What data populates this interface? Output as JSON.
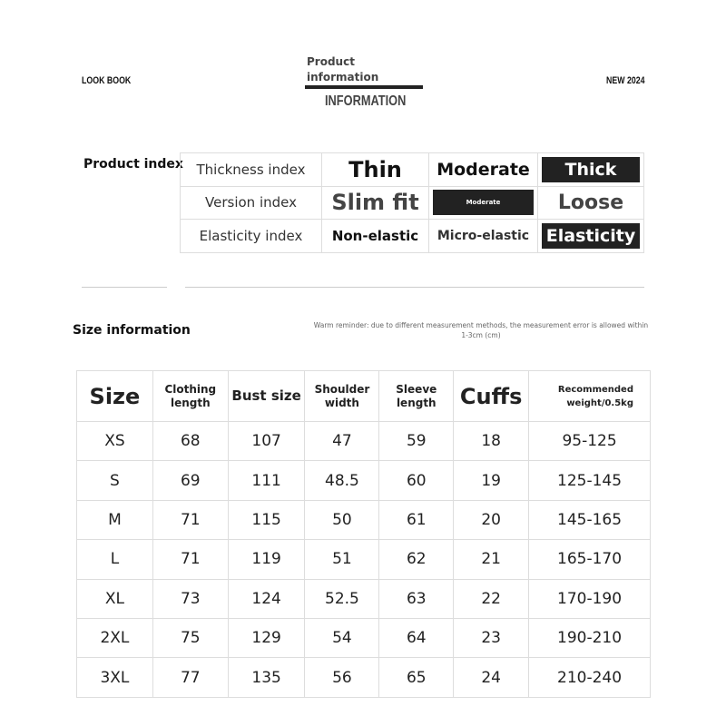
{
  "header": {
    "left": "LOOK BOOK",
    "right": "NEW 2024",
    "title_line1": "Product",
    "title_line2": "information",
    "subtitle": "INFORMATION"
  },
  "product_index": {
    "label": "Product index",
    "rows": [
      {
        "label": "Thickness index",
        "options": [
          "Thin",
          "Moderate",
          "Thick"
        ],
        "selected": 2
      },
      {
        "label": "Version index",
        "options": [
          "Slim fit",
          "Moderate",
          "Loose"
        ],
        "selected": 1
      },
      {
        "label": "Elasticity index",
        "options": [
          "Non-elastic",
          "Micro-elastic",
          "Elasticity"
        ],
        "selected": 2
      }
    ]
  },
  "size_info": {
    "label": "Size information",
    "reminder_line1": "Warm reminder: due to different measurement methods, the measurement error is allowed within",
    "reminder_line2": "1-3cm (cm)",
    "columns": [
      "Size",
      "Clothing length",
      "Bust size",
      "Shoulder width",
      "Sleeve length",
      "Cuffs",
      "Recommended weight/0.5kg"
    ],
    "rows": [
      [
        "XS",
        "68",
        "107",
        "47",
        "59",
        "18",
        "95-125"
      ],
      [
        "S",
        "69",
        "111",
        "48.5",
        "60",
        "19",
        "125-145"
      ],
      [
        "M",
        "71",
        "115",
        "50",
        "61",
        "20",
        "145-165"
      ],
      [
        "L",
        "71",
        "119",
        "51",
        "62",
        "21",
        "165-170"
      ],
      [
        "XL",
        "73",
        "124",
        "52.5",
        "63",
        "22",
        "170-190"
      ],
      [
        "2XL",
        "75",
        "129",
        "54",
        "64",
        "23",
        "190-210"
      ],
      [
        "3XL",
        "77",
        "135",
        "56",
        "65",
        "24",
        "210-240"
      ]
    ]
  }
}
